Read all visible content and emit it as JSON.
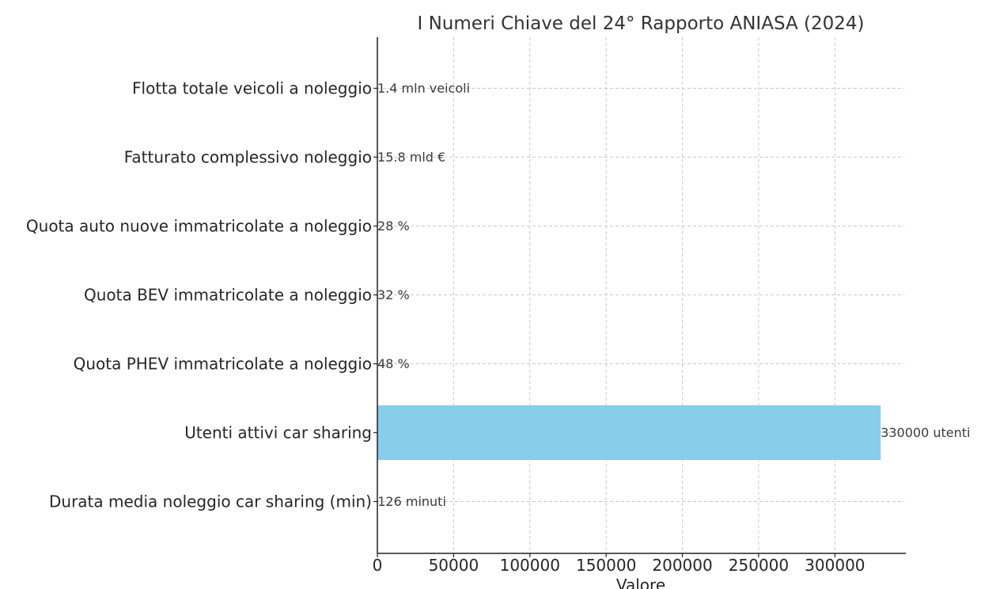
{
  "chart_data": {
    "type": "bar",
    "orientation": "horizontal",
    "title": "I Numeri Chiave del 24° Rapporto ANIASA (2024)",
    "xlabel": "Valore",
    "ylabel": "",
    "categories": [
      "Flotta totale veicoli a noleggio",
      "Fatturato complessivo noleggio",
      "Quota auto nuove immatricolate a noleggio",
      "Quota BEV immatricolate a noleggio",
      "Quota PHEV immatricolate a noleggio",
      "Utenti attivi car sharing",
      "Durata media noleggio car sharing (min)"
    ],
    "values": [
      1.4,
      15.8,
      28,
      32,
      48,
      330000,
      126
    ],
    "data_labels": [
      "1.4 mln veicoli",
      "15.8 mld €",
      "28 %",
      "32 %",
      "48 %",
      "330000 utenti",
      "126 minuti"
    ],
    "xlim": [
      0,
      346500
    ],
    "xticks": [
      0,
      50000,
      100000,
      150000,
      200000,
      250000,
      300000
    ],
    "xtick_labels": [
      "0",
      "50000",
      "100000",
      "150000",
      "200000",
      "250000",
      "300000"
    ],
    "grid": true,
    "bar_color": "#87ceeb"
  }
}
